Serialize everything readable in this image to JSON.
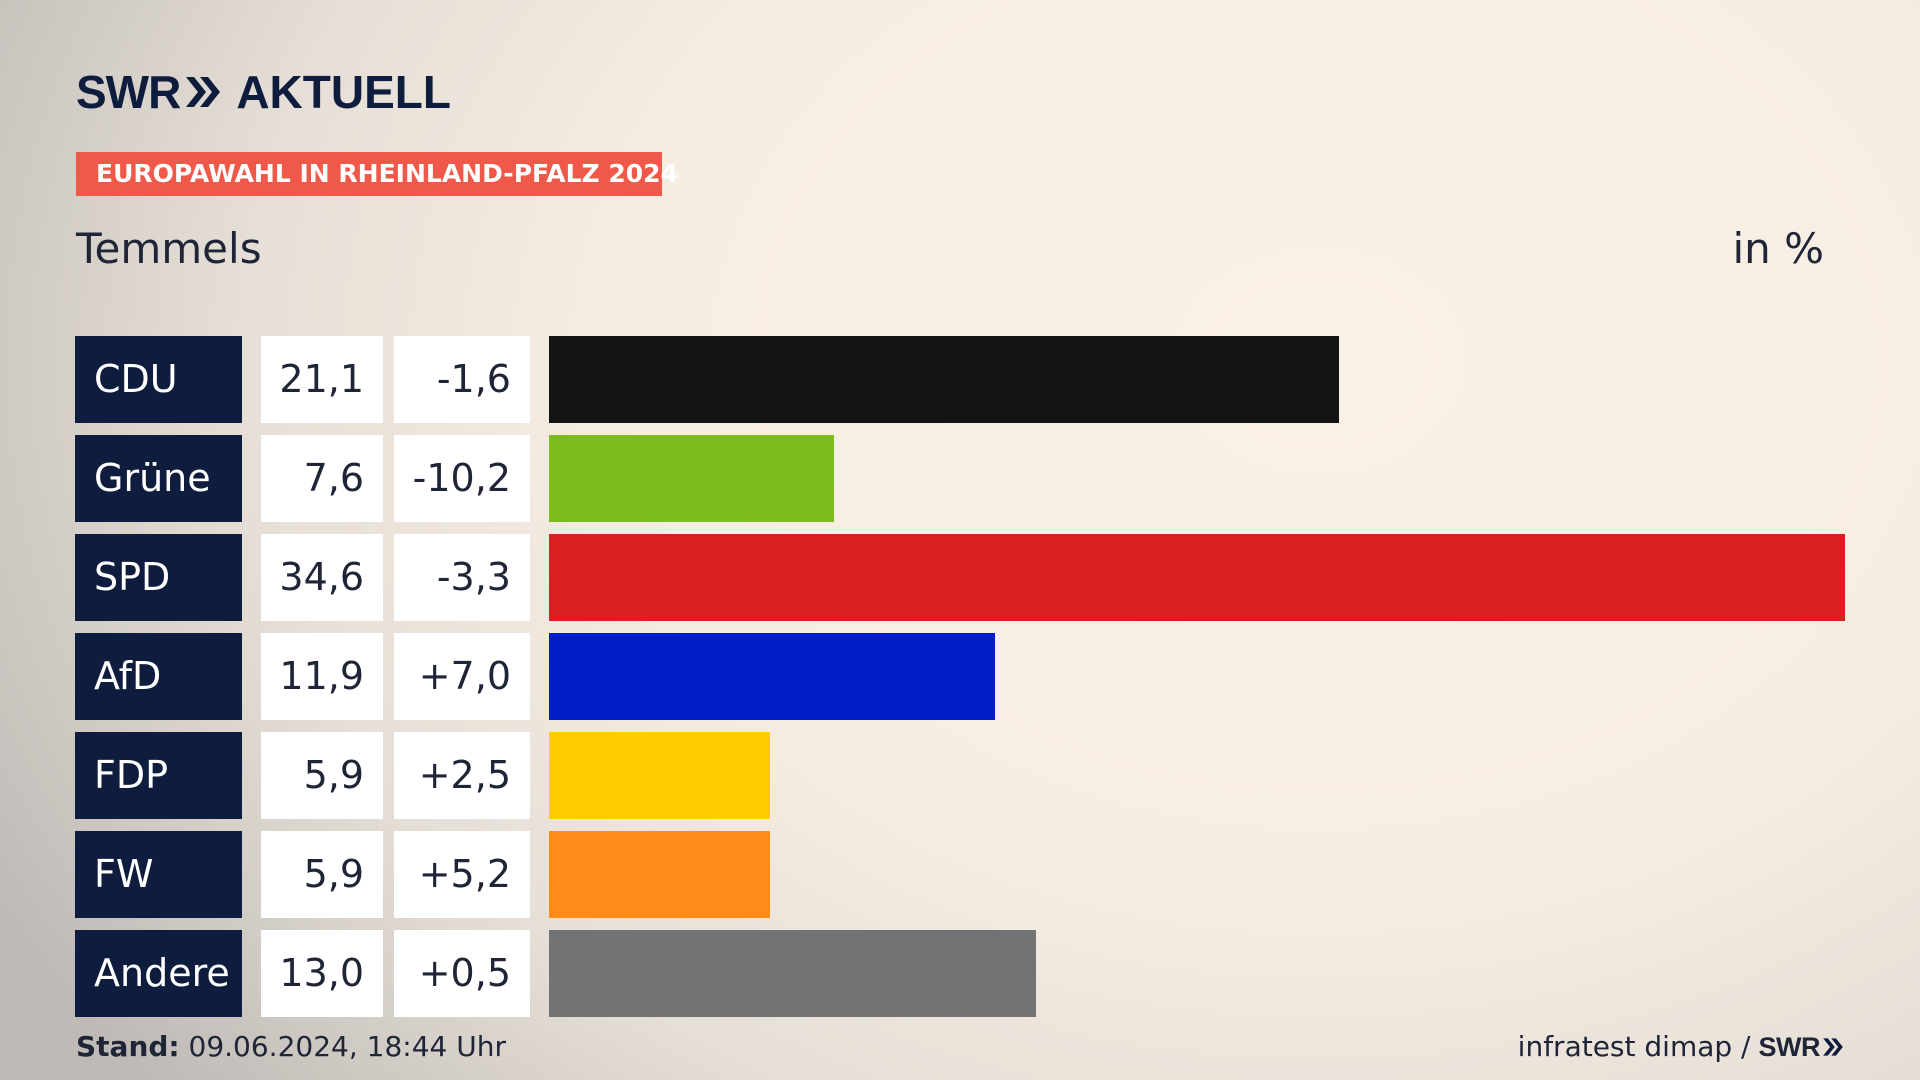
{
  "brand": {
    "swr": "SWR",
    "aktuell": "AKTUELL"
  },
  "tagline": "EUROPAWAHL IN RHEINLAND-PFALZ 2024",
  "place": "Temmels",
  "unit_label": "in %",
  "footer": {
    "stand_label": "Stand:",
    "stand_value": " 09.06.2024, 18:44 Uhr",
    "source": "infratest dimap /",
    "source_brand": "SWR"
  },
  "colors": {
    "navy": "#0e1c3d",
    "tagline_bg": "#f0584a"
  },
  "chart_data": {
    "type": "bar",
    "orientation": "horizontal",
    "categories": [
      "CDU",
      "Grüne",
      "SPD",
      "AfD",
      "FDP",
      "FW",
      "Andere"
    ],
    "values": [
      21.1,
      7.6,
      34.6,
      11.9,
      5.9,
      5.9,
      13.0
    ],
    "value_labels": [
      "21,1",
      "7,6",
      "34,6",
      "11,9",
      "5,9",
      "5,9",
      "13,0"
    ],
    "diff_labels": [
      "-1,6",
      "-10,2",
      "-3,3",
      "+7,0",
      "+2,5",
      "+5,2",
      "+0,5"
    ],
    "diffs": [
      -1.6,
      -10.2,
      -3.3,
      7.0,
      2.5,
      5.2,
      0.5
    ],
    "colors": [
      "#141414",
      "#7bbd1e",
      "#d7201f",
      "#001ec8",
      "#ffcc00",
      "#ff8c18",
      "#727375"
    ],
    "xlim": [
      0,
      34.6
    ]
  }
}
